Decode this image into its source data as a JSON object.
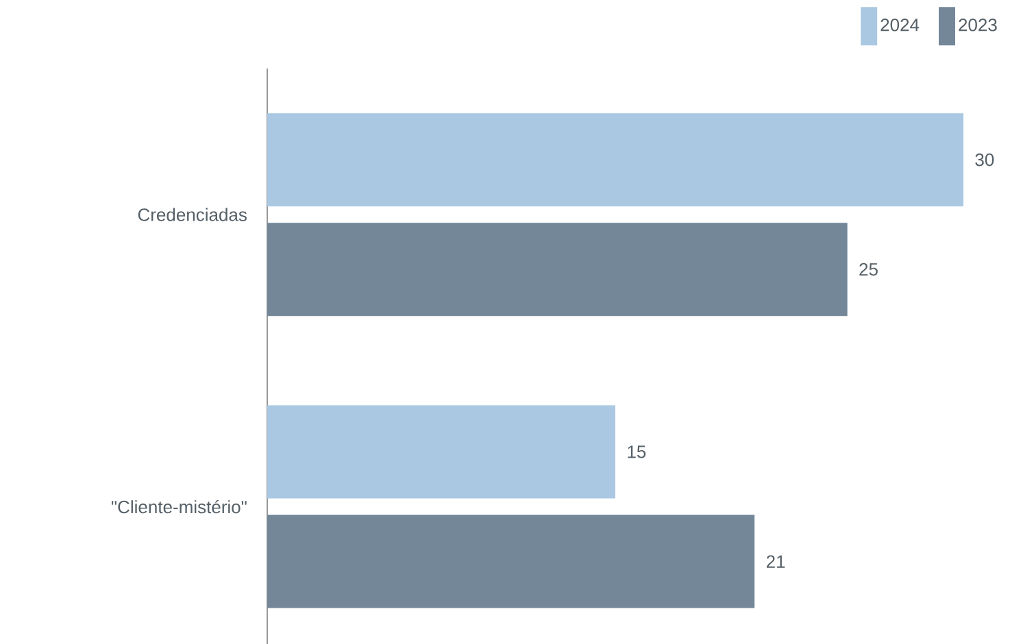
{
  "chart_data": {
    "type": "bar",
    "orientation": "horizontal",
    "categories": [
      "Credenciadas",
      "\"Cliente-mistério\""
    ],
    "series": [
      {
        "name": "2024",
        "color": "#abc8e2",
        "values": [
          30,
          15
        ]
      },
      {
        "name": "2023",
        "color": "#738799",
        "values": [
          25,
          21
        ]
      }
    ],
    "data_labels": true,
    "legend": "top right"
  }
}
